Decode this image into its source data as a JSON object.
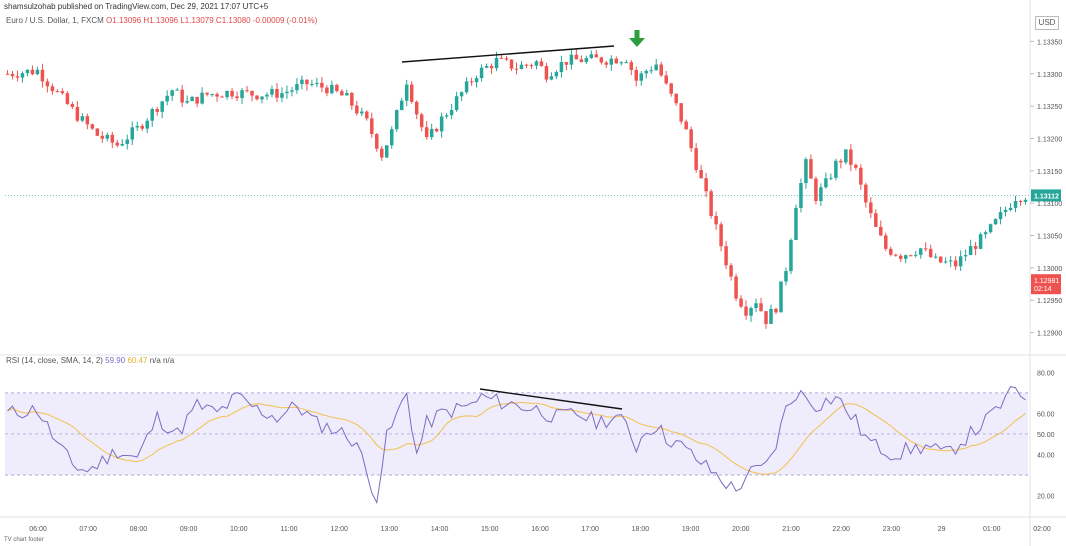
{
  "header": {
    "published_by": "shamsulzohab published on TradingView.com, Dec 29, 2021 17:07 UTC+5"
  },
  "legend": {
    "symbol": "Euro / U.S. Dollar, 1, FXCM",
    "ohlc": "O1.13096 H1.13096 L1.13079 C1.13080 -0.00009 (-0.01%)"
  },
  "currency_button": "USD",
  "colors": {
    "up": "#26a69a",
    "down": "#ef5350",
    "rsi_line": "#7e6bc4",
    "rsi_ma": "#f2c14e",
    "rsi_band": "#efecfb",
    "arrow": "#2e9e3d",
    "current_price_badge": "#26a69a",
    "countdown_badge": "#ef5350"
  },
  "price_axis": {
    "ticks": [
      "1.13350",
      "1.13300",
      "1.13250",
      "1.13200",
      "1.13150",
      "1.13100",
      "1.13050",
      "1.13000",
      "1.12950",
      "1.12900"
    ],
    "current_price": "1.13112",
    "countdown_price": "1.12981",
    "countdown_time": "02:14"
  },
  "rsi": {
    "legend_name": "RSI (14, close, SMA, 14, 2)",
    "legend_rsi": "59.90",
    "legend_ma": "60.47",
    "legend_extra": "n/a n/a",
    "ticks": [
      "80.00",
      "60.00",
      "50.00",
      "40.00",
      "20.00"
    ],
    "upper_band": 70,
    "mid": 50,
    "lower_band": 30
  },
  "time_axis": {
    "labels": [
      "06:00",
      "07:00",
      "08:00",
      "09:00",
      "10:00",
      "11:00",
      "12:00",
      "13:00",
      "14:00",
      "15:00",
      "16:00",
      "17:00",
      "18:00",
      "19:00",
      "20:00",
      "21:00",
      "22:00",
      "23:00",
      "29",
      "01:00",
      "02:00"
    ]
  },
  "footer": "TV chart footer",
  "chart_data": [
    {
      "type": "candlestick",
      "title": "Euro / U.S. Dollar, 1, FXCM",
      "ylim": [
        1.1287,
        1.1338
      ],
      "annotations": [
        "resistance trendline over rising highs",
        "green down arrow above peak"
      ]
    },
    {
      "type": "line",
      "title": "RSI (14, close, SMA, 14, 2)",
      "ylim": [
        12,
        86
      ],
      "series": [
        {
          "name": "RSI",
          "values": []
        },
        {
          "name": "RSI-based MA",
          "values": []
        }
      ],
      "annotations": [
        "bearish divergence trendline on RSI"
      ]
    }
  ]
}
